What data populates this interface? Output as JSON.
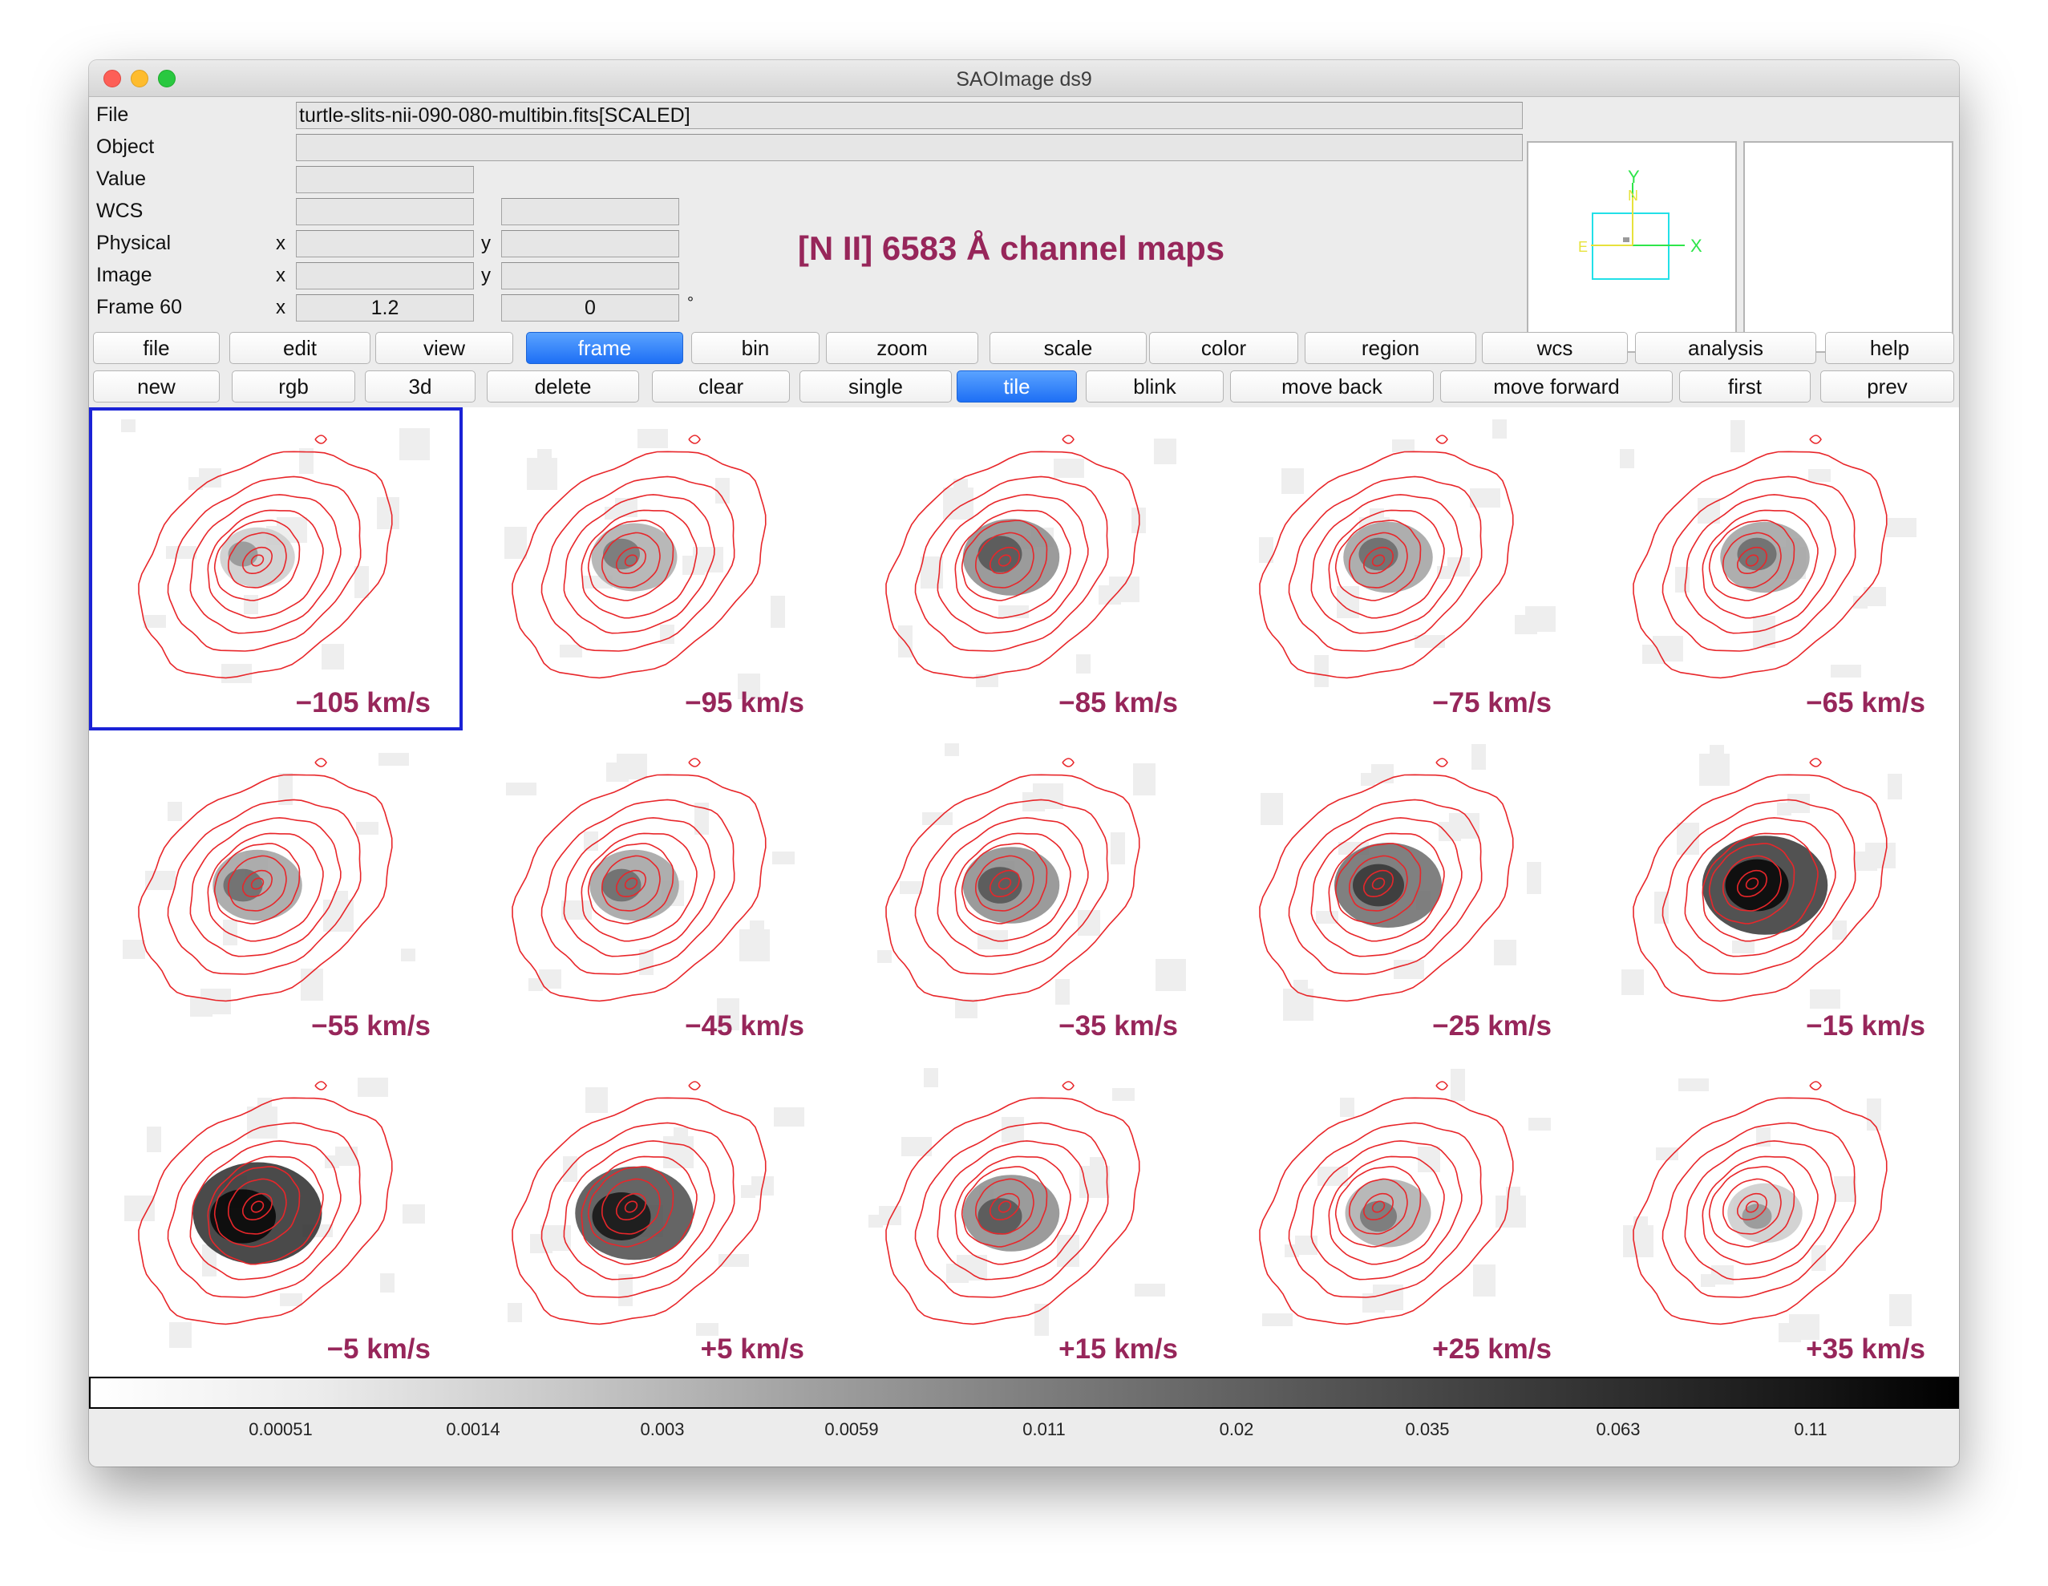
{
  "window": {
    "title": "SAOImage ds9"
  },
  "info": {
    "file_label": "File",
    "file_value": "turtle-slits-nii-090-080-multibin.fits[SCALED]",
    "object_label": "Object",
    "object_value": "",
    "value_label": "Value",
    "value_value": "",
    "wcs_label": "WCS",
    "wcs_value1": "",
    "wcs_value2": "",
    "physical_label": "Physical",
    "physical_x": "",
    "physical_y": "",
    "image_label": "Image",
    "image_x": "",
    "image_y": "",
    "frame_label": "Frame 60",
    "frame_zoom": "1.2",
    "frame_angle": "0",
    "x_axis": "x",
    "y_axis": "y",
    "degree_symbol": "°"
  },
  "overlay_title": "[N II] 6583 Å channel maps",
  "panner": {
    "axis_y": "Y",
    "axis_x": "X",
    "axis_n": "N",
    "axis_e": "E"
  },
  "menu_bar": [
    "file",
    "edit",
    "view",
    "frame",
    "bin",
    "zoom",
    "scale",
    "color",
    "region",
    "wcs",
    "analysis",
    "help"
  ],
  "menu_active": "frame",
  "frame_buttons": [
    "new",
    "rgb",
    "3d",
    "delete",
    "clear",
    "single",
    "tile",
    "blink",
    "move back",
    "move forward",
    "first",
    "prev"
  ],
  "frame_active": "tile",
  "tiles": [
    {
      "label": "−105 km/s",
      "intensity": 0.15
    },
    {
      "label": "−95 km/s",
      "intensity": 0.3
    },
    {
      "label": "−85 km/s",
      "intensity": 0.45
    },
    {
      "label": "−75 km/s",
      "intensity": 0.35
    },
    {
      "label": "−65 km/s",
      "intensity": 0.35
    },
    {
      "label": "−55 km/s",
      "intensity": 0.35
    },
    {
      "label": "−45 km/s",
      "intensity": 0.35
    },
    {
      "label": "−35 km/s",
      "intensity": 0.45
    },
    {
      "label": "−25 km/s",
      "intensity": 0.6
    },
    {
      "label": "−15 km/s",
      "intensity": 0.85
    },
    {
      "label": "−5 km/s",
      "intensity": 0.9
    },
    {
      "label": "+5 km/s",
      "intensity": 0.75
    },
    {
      "label": "+15 km/s",
      "intensity": 0.45
    },
    {
      "label": "+25 km/s",
      "intensity": 0.3
    },
    {
      "label": "+35 km/s",
      "intensity": 0.15
    }
  ],
  "colorbar_ticks": [
    "0.00051",
    "0.0014",
    "0.003",
    "0.0059",
    "0.011",
    "0.02",
    "0.035",
    "0.063",
    "0.11"
  ],
  "colors": {
    "contour": "#e8262a",
    "label": "#97265a",
    "active_button": "#1e6ff5",
    "selection": "#1a22d6"
  }
}
